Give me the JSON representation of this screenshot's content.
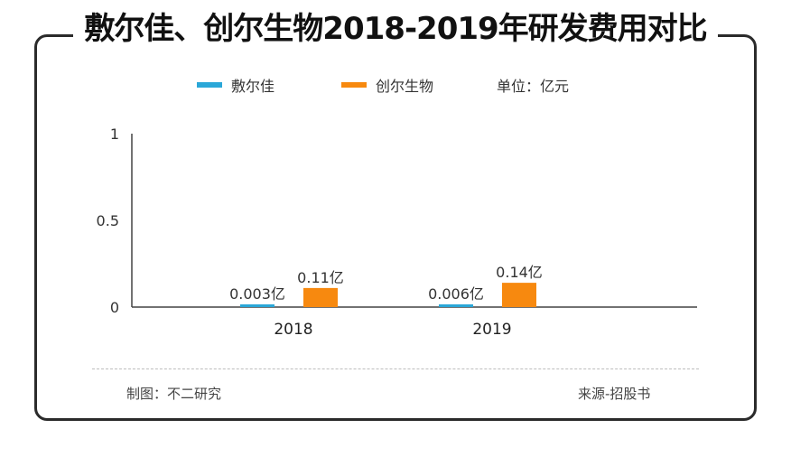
{
  "title": "敷尔佳、创尔生物2018-2019年研发费用对比",
  "legend": {
    "items": [
      {
        "name": "敷尔佳",
        "color": "#2aa7d8"
      },
      {
        "name": "创尔生物",
        "color": "#f7890f"
      }
    ],
    "unit": "单位：亿元"
  },
  "footer": {
    "maker": "制图：不二研究",
    "source": "来源-招股书"
  },
  "chart_data": {
    "type": "bar",
    "categories": [
      "2018",
      "2019"
    ],
    "series": [
      {
        "name": "敷尔佳",
        "values": [
          0.003,
          0.006
        ],
        "labels": [
          "0.003亿",
          "0.006亿"
        ],
        "color": "#2aa7d8"
      },
      {
        "name": "创尔生物",
        "values": [
          0.11,
          0.14
        ],
        "labels": [
          "0.11亿",
          "0.14亿"
        ],
        "color": "#f7890f"
      }
    ],
    "yticks": [
      "0",
      "0.5",
      "1"
    ],
    "ytick_values": [
      0,
      0.5,
      1
    ],
    "ylim": [
      0,
      1
    ],
    "grid": false,
    "legend_position": "top"
  }
}
